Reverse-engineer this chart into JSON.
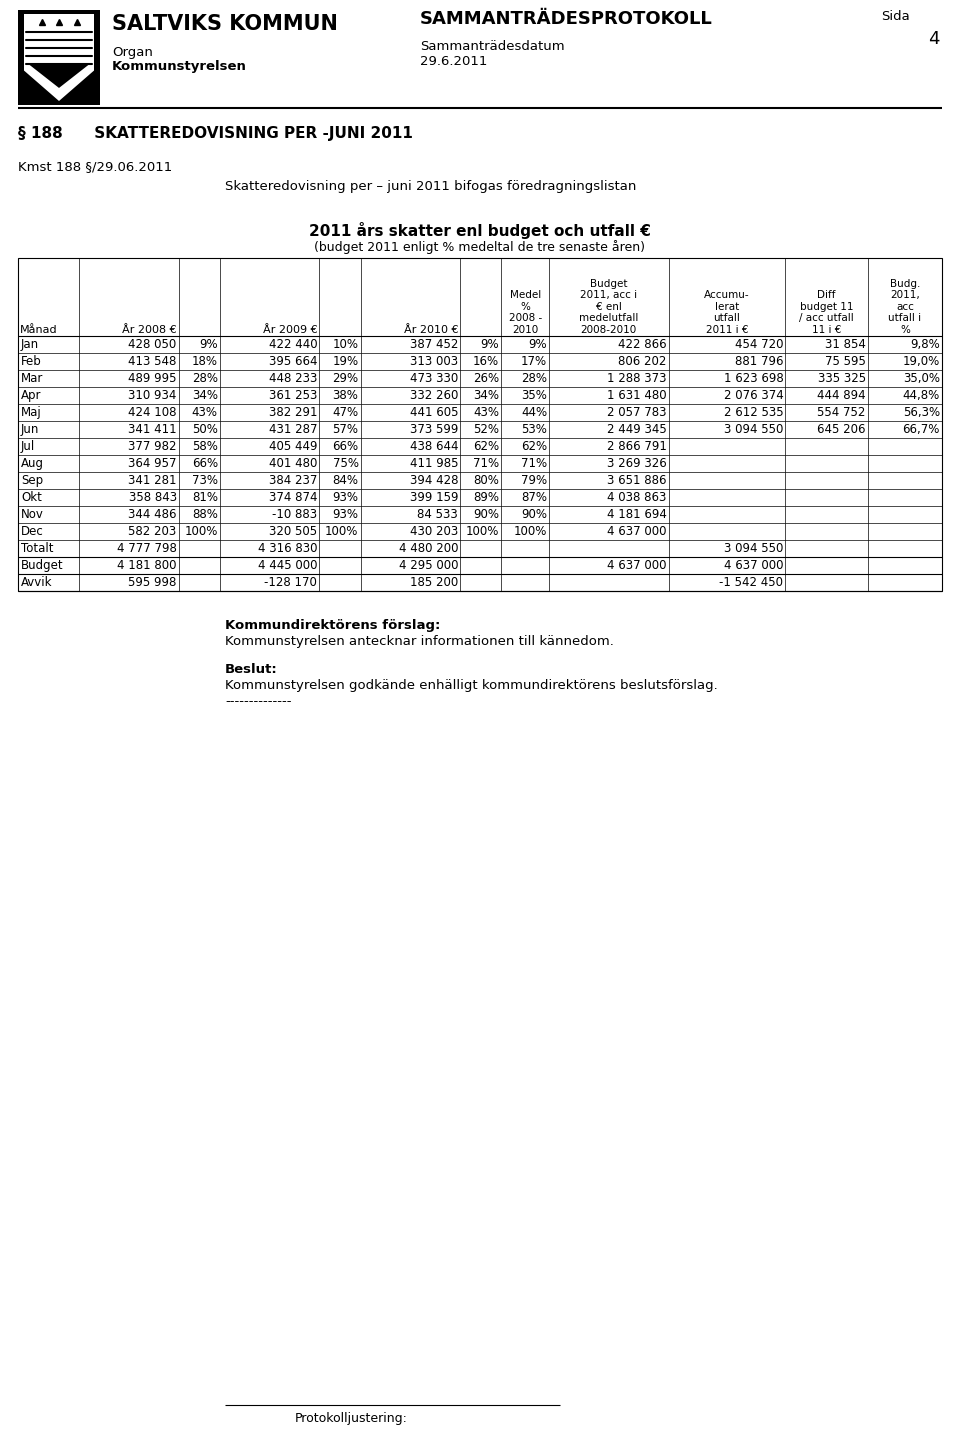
{
  "title_org": "SALTVIKS KOMMUN",
  "organ": "Organ",
  "kommunstyrelsen": "Kommunstyrelsen",
  "title_samman": "SAMMANTRÄDESPROTOKOLL",
  "samman_label": "Sammanträdesdatum",
  "samman_date": "29.6.2011",
  "sida_label": "Sida",
  "sida_num": "4",
  "section_title": "§ 188      SKATTEREDOVISNING PER -JUNI 2011",
  "kmst_line": "Kmst 188 §/29.06.2011",
  "intro_line": "Skatteredovisning per – juni 2011 bifogas föredragningslistan",
  "chart_title": "2011 års skatter enl budget och utfall €",
  "chart_subtitle": "(budget 2011 enligt % medeltal de tre senaste åren)",
  "rows": [
    [
      "Jan",
      "428 050",
      "9%",
      "422 440",
      "10%",
      "387 452",
      "9%",
      "9%",
      "422 866",
      "454 720",
      "31 854",
      "9,8%"
    ],
    [
      "Feb",
      "413 548",
      "18%",
      "395 664",
      "19%",
      "313 003",
      "16%",
      "17%",
      "806 202",
      "881 796",
      "75 595",
      "19,0%"
    ],
    [
      "Mar",
      "489 995",
      "28%",
      "448 233",
      "29%",
      "473 330",
      "26%",
      "28%",
      "1 288 373",
      "1 623 698",
      "335 325",
      "35,0%"
    ],
    [
      "Apr",
      "310 934",
      "34%",
      "361 253",
      "38%",
      "332 260",
      "34%",
      "35%",
      "1 631 480",
      "2 076 374",
      "444 894",
      "44,8%"
    ],
    [
      "Maj",
      "424 108",
      "43%",
      "382 291",
      "47%",
      "441 605",
      "43%",
      "44%",
      "2 057 783",
      "2 612 535",
      "554 752",
      "56,3%"
    ],
    [
      "Jun",
      "341 411",
      "50%",
      "431 287",
      "57%",
      "373 599",
      "52%",
      "53%",
      "2 449 345",
      "3 094 550",
      "645 206",
      "66,7%"
    ],
    [
      "Jul",
      "377 982",
      "58%",
      "405 449",
      "66%",
      "438 644",
      "62%",
      "62%",
      "2 866 791",
      "",
      "",
      ""
    ],
    [
      "Aug",
      "364 957",
      "66%",
      "401 480",
      "75%",
      "411 985",
      "71%",
      "71%",
      "3 269 326",
      "",
      "",
      ""
    ],
    [
      "Sep",
      "341 281",
      "73%",
      "384 237",
      "84%",
      "394 428",
      "80%",
      "79%",
      "3 651 886",
      "",
      "",
      ""
    ],
    [
      "Okt",
      "358 843",
      "81%",
      "374 874",
      "93%",
      "399 159",
      "89%",
      "87%",
      "4 038 863",
      "",
      "",
      ""
    ],
    [
      "Nov",
      "344 486",
      "88%",
      "-10 883",
      "93%",
      "84 533",
      "90%",
      "90%",
      "4 181 694",
      "",
      "",
      ""
    ],
    [
      "Dec",
      "582 203",
      "100%",
      "320 505",
      "100%",
      "430 203",
      "100%",
      "100%",
      "4 637 000",
      "",
      "",
      ""
    ]
  ],
  "total_row": [
    "Totalt",
    "4 777 798",
    "",
    "4 316 830",
    "",
    "4 480 200",
    "",
    "",
    "",
    "3 094 550",
    "",
    ""
  ],
  "budget_row": [
    "Budget",
    "4 181 800",
    "",
    "4 445 000",
    "",
    "4 295 000",
    "",
    "",
    "4 637 000",
    "4 637 000",
    "",
    ""
  ],
  "avvik_row": [
    "Avvik",
    "595 998",
    "",
    "-128 170",
    "",
    "185 200",
    "",
    "",
    "",
    "-1 542 450",
    "",
    ""
  ],
  "forslag_title": "Kommundirektörens förslag:",
  "forslag_text": "Kommunstyrelsen antecknar informationen till kännedom.",
  "beslut_title": "Beslut:",
  "beslut_text": "Kommunstyrelsen godkände enhälligt kommundirektörens beslutsförslag.",
  "dashes": "--------------",
  "protokoll": "Protokolljustering:"
}
